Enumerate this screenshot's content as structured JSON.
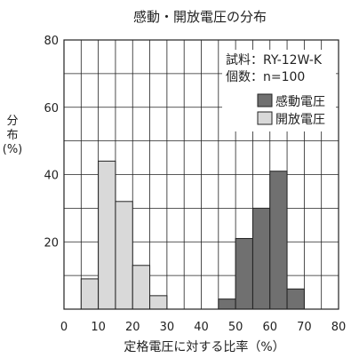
{
  "chart_data": {
    "type": "bar",
    "title": "感動・開放電圧の分布",
    "xlabel": "定格電圧に対する比率（%）",
    "ylabel": [
      "分",
      "布",
      "(%)"
    ],
    "xlim": [
      0,
      80
    ],
    "ylim": [
      0,
      80
    ],
    "bin_width": 5,
    "grid": true,
    "x_ticks": [
      "0",
      "10",
      "20",
      "30",
      "40",
      "50",
      "60",
      "70",
      "80"
    ],
    "y_ticks": [
      "20",
      "40",
      "60",
      "80"
    ],
    "annotations": [
      "試料：RY-12W-K",
      "個数：n=100"
    ],
    "legend_position": "top-right",
    "series": [
      {
        "name": "感動電圧",
        "color": "#707070",
        "bins": [
          {
            "start": 45,
            "end": 50,
            "value": 3
          },
          {
            "start": 50,
            "end": 55,
            "value": 21
          },
          {
            "start": 55,
            "end": 60,
            "value": 30
          },
          {
            "start": 60,
            "end": 65,
            "value": 41
          },
          {
            "start": 65,
            "end": 70,
            "value": 6
          }
        ]
      },
      {
        "name": "開放電圧",
        "color": "#d9d9d9",
        "bins": [
          {
            "start": 5,
            "end": 10,
            "value": 9
          },
          {
            "start": 10,
            "end": 15,
            "value": 44
          },
          {
            "start": 15,
            "end": 20,
            "value": 32
          },
          {
            "start": 20,
            "end": 25,
            "value": 13
          },
          {
            "start": 25,
            "end": 30,
            "value": 4
          }
        ]
      }
    ]
  }
}
